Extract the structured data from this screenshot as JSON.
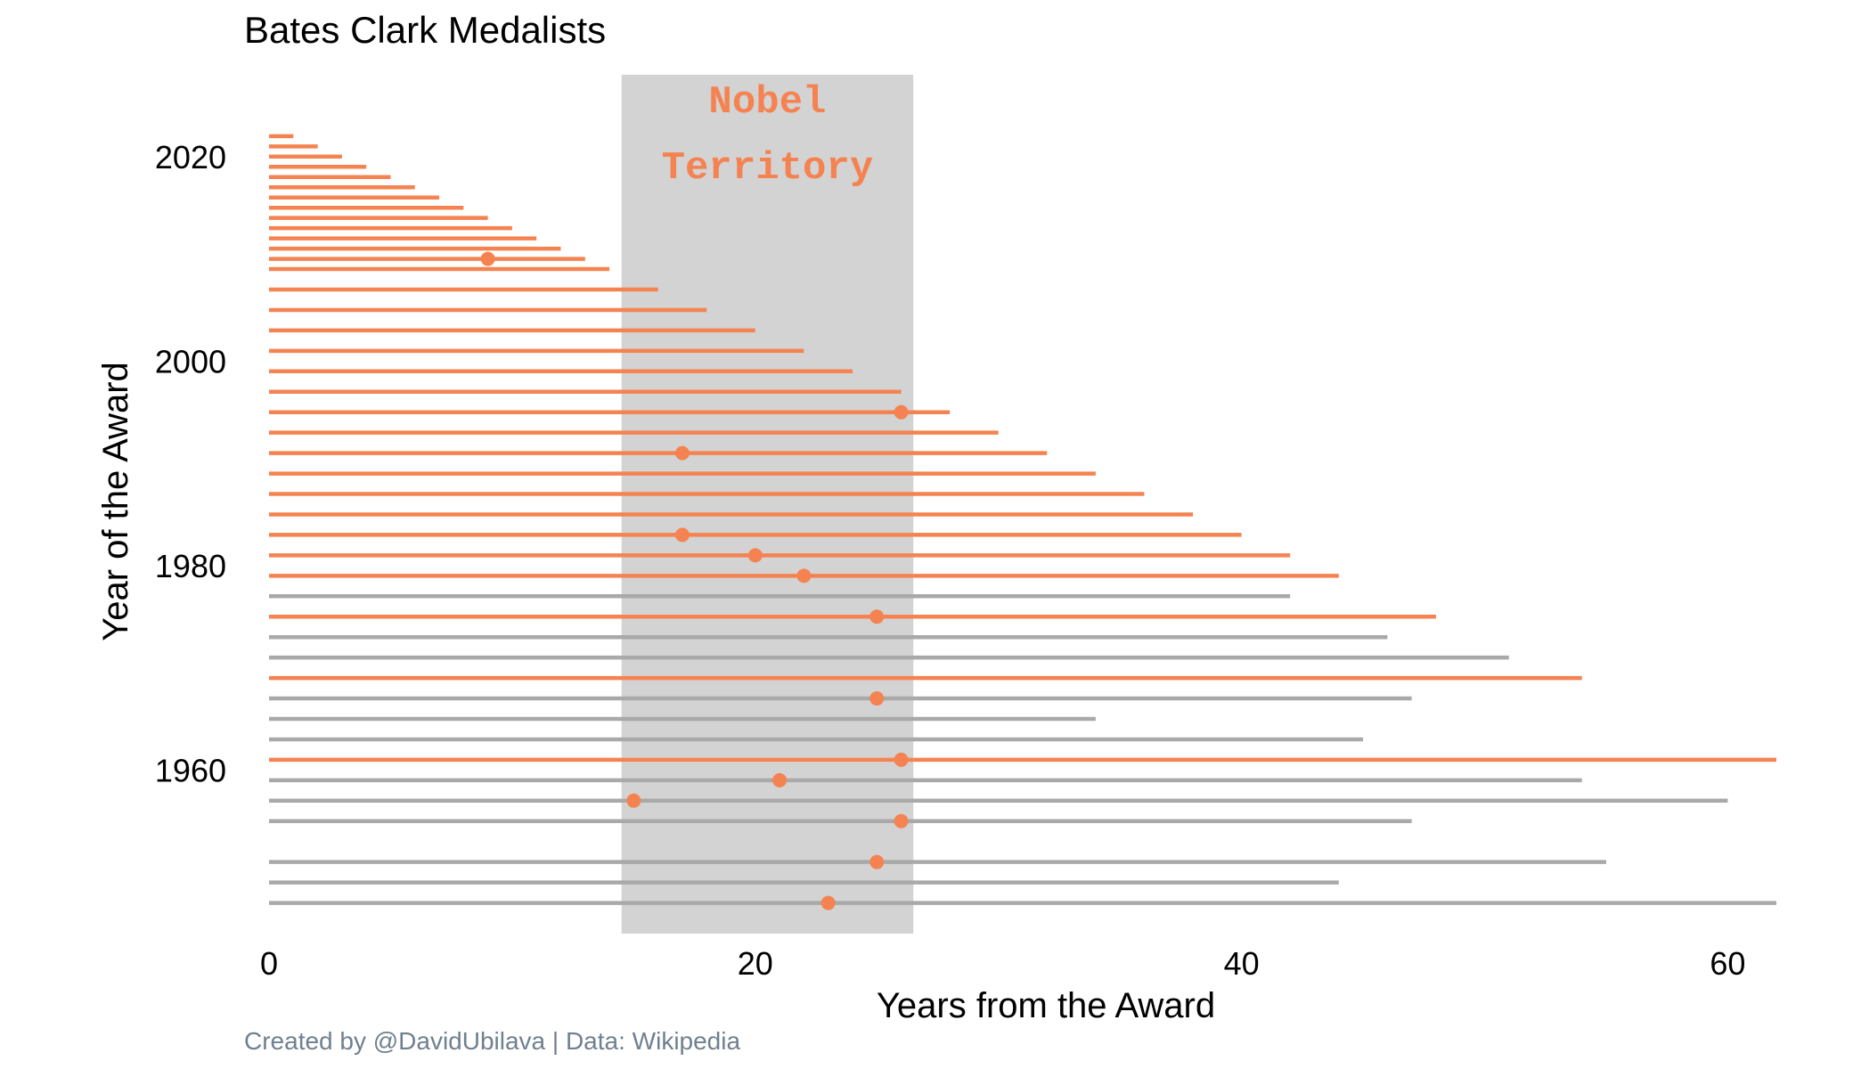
{
  "chart_data": {
    "type": "lollipop-range",
    "title": "Bates Clark Medalists",
    "xlabel": "Years from the Award",
    "ylabel": "Year of the Award",
    "caption": "Created by @DavidUbilava | Data: Wikipedia",
    "annotation": {
      "lines": [
        "Nobel",
        "Territory"
      ],
      "x_range": [
        14.5,
        26.5
      ]
    },
    "xlim": [
      0,
      62
    ],
    "ylim": [
      1944,
      2028
    ],
    "x_ticks": [
      0,
      20,
      40,
      60
    ],
    "y_ticks": [
      1960,
      1980,
      2000,
      2020
    ],
    "grid": false,
    "colors": {
      "active": "#F58351",
      "inactive": "#A9A9A9",
      "band": "#D3D3D3",
      "annotation_text": "#F58351",
      "caption": "#708090"
    },
    "awards": [
      {
        "year": 1947,
        "span": 62,
        "nobel": 23,
        "active": false
      },
      {
        "year": 1949,
        "span": 44,
        "nobel": null,
        "active": false
      },
      {
        "year": 1951,
        "span": 55,
        "nobel": 25,
        "active": false
      },
      {
        "year": 1955,
        "span": 47,
        "nobel": 26,
        "active": false
      },
      {
        "year": 1957,
        "span": 60,
        "nobel": 15,
        "active": false
      },
      {
        "year": 1959,
        "span": 54,
        "nobel": 21,
        "active": false
      },
      {
        "year": 1961,
        "span": 62,
        "nobel": 26,
        "active": true
      },
      {
        "year": 1963,
        "span": 45,
        "nobel": null,
        "active": false
      },
      {
        "year": 1965,
        "span": 34,
        "nobel": null,
        "active": false
      },
      {
        "year": 1967,
        "span": 47,
        "nobel": 25,
        "active": false
      },
      {
        "year": 1969,
        "span": 54,
        "nobel": null,
        "active": true
      },
      {
        "year": 1971,
        "span": 51,
        "nobel": null,
        "active": false
      },
      {
        "year": 1973,
        "span": 46,
        "nobel": null,
        "active": false
      },
      {
        "year": 1975,
        "span": 48,
        "nobel": 25,
        "active": true
      },
      {
        "year": 1977,
        "span": 42,
        "nobel": null,
        "active": false
      },
      {
        "year": 1979,
        "span": 44,
        "nobel": 22,
        "active": true
      },
      {
        "year": 1981,
        "span": 42,
        "nobel": 20,
        "active": true
      },
      {
        "year": 1983,
        "span": 40,
        "nobel": 17,
        "active": true
      },
      {
        "year": 1985,
        "span": 38,
        "nobel": null,
        "active": true
      },
      {
        "year": 1987,
        "span": 36,
        "nobel": null,
        "active": true
      },
      {
        "year": 1989,
        "span": 34,
        "nobel": null,
        "active": true
      },
      {
        "year": 1991,
        "span": 32,
        "nobel": 17,
        "active": true
      },
      {
        "year": 1993,
        "span": 30,
        "nobel": null,
        "active": true
      },
      {
        "year": 1995,
        "span": 28,
        "nobel": 26,
        "active": true
      },
      {
        "year": 1997,
        "span": 26,
        "nobel": null,
        "active": true
      },
      {
        "year": 1999,
        "span": 24,
        "nobel": null,
        "active": true
      },
      {
        "year": 2001,
        "span": 22,
        "nobel": null,
        "active": true
      },
      {
        "year": 2003,
        "span": 20,
        "nobel": null,
        "active": true
      },
      {
        "year": 2005,
        "span": 18,
        "nobel": null,
        "active": true
      },
      {
        "year": 2007,
        "span": 16,
        "nobel": null,
        "active": true
      },
      {
        "year": 2009,
        "span": 14,
        "nobel": null,
        "active": true
      },
      {
        "year": 2010,
        "span": 13,
        "nobel": 9,
        "active": true
      },
      {
        "year": 2011,
        "span": 12,
        "nobel": null,
        "active": true
      },
      {
        "year": 2012,
        "span": 11,
        "nobel": null,
        "active": true
      },
      {
        "year": 2013,
        "span": 10,
        "nobel": null,
        "active": true
      },
      {
        "year": 2014,
        "span": 9,
        "nobel": null,
        "active": true
      },
      {
        "year": 2015,
        "span": 8,
        "nobel": null,
        "active": true
      },
      {
        "year": 2016,
        "span": 7,
        "nobel": null,
        "active": true
      },
      {
        "year": 2017,
        "span": 6,
        "nobel": null,
        "active": true
      },
      {
        "year": 2018,
        "span": 5,
        "nobel": null,
        "active": true
      },
      {
        "year": 2019,
        "span": 4,
        "nobel": null,
        "active": true
      },
      {
        "year": 2020,
        "span": 3,
        "nobel": null,
        "active": true
      },
      {
        "year": 2021,
        "span": 2,
        "nobel": null,
        "active": true
      },
      {
        "year": 2022,
        "span": 1,
        "nobel": null,
        "active": true
      }
    ]
  }
}
